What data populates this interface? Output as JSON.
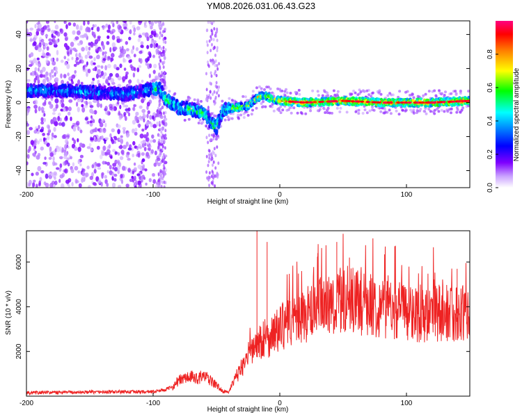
{
  "title": "YM08.2026.031.06.43.G23",
  "chart_data": [
    {
      "id": "spectrogram",
      "type": "heatmap",
      "xlabel": "Height of straight line (km)",
      "ylabel": "Frequency (Hz)",
      "xlim": [
        -200,
        150
      ],
      "ylim": [
        -50,
        48
      ],
      "xticks": [
        -200,
        -100,
        0,
        100
      ],
      "yticks": [
        -40,
        -20,
        0,
        20,
        40
      ],
      "colorbar": {
        "label": "Normalized spectral amplitude",
        "range": [
          0,
          1
        ],
        "ticks": [
          0.0,
          0.2,
          0.4,
          0.6,
          0.8
        ]
      },
      "ridge": {
        "description_points_km_hz": [
          [
            -190,
            7
          ],
          [
            -170,
            7
          ],
          [
            -150,
            6
          ],
          [
            -120,
            5
          ],
          [
            -100,
            8
          ],
          [
            -95,
            8
          ],
          [
            -90,
            2
          ],
          [
            -80,
            -3
          ],
          [
            -70,
            -4
          ],
          [
            -60,
            -6
          ],
          [
            -55,
            -11
          ],
          [
            -50,
            -15
          ],
          [
            -45,
            -4
          ],
          [
            -35,
            -3
          ],
          [
            -25,
            -2
          ],
          [
            -18,
            3
          ],
          [
            -12,
            4
          ],
          [
            -5,
            2
          ],
          [
            0,
            1
          ],
          [
            20,
            0
          ],
          [
            50,
            1
          ],
          [
            80,
            0
          ],
          [
            100,
            0
          ],
          [
            120,
            0
          ],
          [
            150,
            1
          ]
        ]
      }
    },
    {
      "id": "snr",
      "type": "line",
      "xlabel": "Height of straight line (km)",
      "ylabel": "SNR (10 * v/v)",
      "xlim": [
        -200,
        150
      ],
      "ylim": [
        0,
        7400
      ],
      "xticks": [
        -200,
        -100,
        0,
        100
      ],
      "yticks": [
        2000,
        4000,
        6000
      ],
      "series": [
        {
          "name": "SNR",
          "color": "#ee2222",
          "x": [
            -200,
            -150,
            -100,
            -90,
            -85,
            -80,
            -75,
            -70,
            -65,
            -60,
            -55,
            -50,
            -45,
            -40,
            -35,
            -30,
            -25,
            -20,
            -15,
            -10,
            -5,
            0,
            10,
            20,
            30,
            40,
            50,
            60,
            70,
            80,
            90,
            100,
            110,
            120,
            130,
            140,
            150
          ],
          "values": [
            150,
            180,
            200,
            300,
            400,
            700,
            800,
            850,
            800,
            900,
            700,
            500,
            200,
            200,
            800,
            1300,
            1800,
            2200,
            2500,
            2600,
            2800,
            3000,
            3400,
            3600,
            3900,
            4100,
            4300,
            4200,
            4100,
            4000,
            3900,
            3800,
            3700,
            3700,
            3700,
            3700,
            3700
          ],
          "peaks": [
            [
              -18,
              7400
            ],
            [
              -10,
              6900
            ],
            [
              30,
              6400
            ],
            [
              45,
              6900
            ],
            [
              55,
              6200
            ],
            [
              140,
              5700
            ]
          ]
        }
      ]
    }
  ],
  "colors": {
    "snr_line": "#ee2222",
    "axis": "#000000"
  }
}
